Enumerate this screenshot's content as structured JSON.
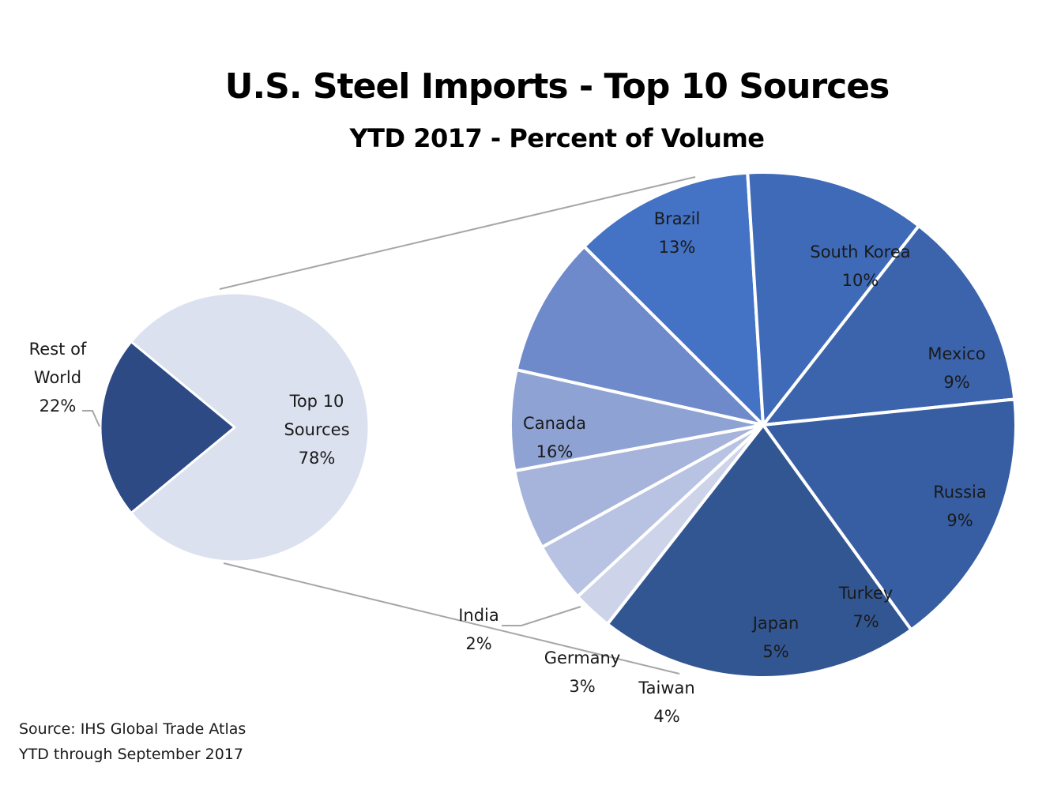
{
  "chart_data": {
    "type": "pie",
    "subtype": "pie-of-pie",
    "title": "U.S. Steel Imports - Top 10 Sources",
    "subtitle": "YTD 2017 - Percent of Volume",
    "primary_pie": {
      "slices": [
        {
          "label": "Rest of World",
          "value": 22,
          "display": "22%",
          "color": "#2E4A85"
        },
        {
          "label": "Top 10 Sources",
          "value": 78,
          "display": "78%",
          "color": "#DCE1F0"
        }
      ]
    },
    "secondary_pie": {
      "parent": "Top 10 Sources",
      "slices": [
        {
          "label": "India",
          "value": 2,
          "display": "2%",
          "color": "#CDD3E8"
        },
        {
          "label": "Germany",
          "value": 3,
          "display": "3%",
          "color": "#B8C2E2"
        },
        {
          "label": "Taiwan",
          "value": 4,
          "display": "4%",
          "color": "#A6B3DA"
        },
        {
          "label": "Japan",
          "value": 5,
          "display": "5%",
          "color": "#8EA2D4"
        },
        {
          "label": "Turkey",
          "value": 7,
          "display": "7%",
          "color": "#6E8ACB"
        },
        {
          "label": "Russia",
          "value": 9,
          "display": "9%",
          "color": "#4472C4"
        },
        {
          "label": "Mexico",
          "value": 9,
          "display": "9%",
          "color": "#3E6AB8"
        },
        {
          "label": "South Korea",
          "value": 10,
          "display": "10%",
          "color": "#3B64AD"
        },
        {
          "label": "Brazil",
          "value": 13,
          "display": "13%",
          "color": "#375EA2"
        },
        {
          "label": "Canada",
          "value": 16,
          "display": "16%",
          "color": "#325692"
        }
      ]
    },
    "connector_color": "#A6A6A6",
    "legend": "none (data labels)"
  },
  "footer": {
    "source_line": "Source: IHS Global Trade Atlas",
    "period_line": "YTD through September 2017"
  }
}
